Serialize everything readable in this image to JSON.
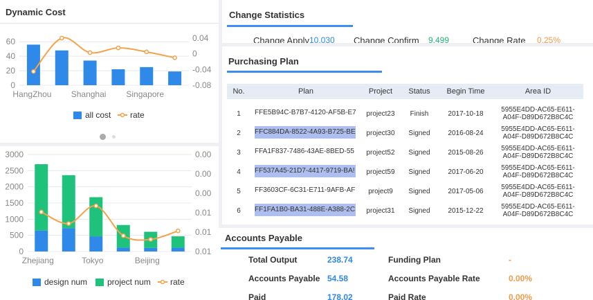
{
  "dynamic_cost": {
    "title": "Dynamic Cost",
    "legend": {
      "all_cost": "all cost",
      "rate": "rate"
    }
  },
  "change_stats": {
    "title": "Change Statistics",
    "apply_label": "Change Apply",
    "apply_value": "10,030",
    "confirm_label": "Change Confirm",
    "confirm_value": "9,499",
    "rate_label": "Change Rate",
    "rate_value": "0.25%"
  },
  "purchasing": {
    "title": "Purchasing Plan",
    "columns": [
      "No.",
      "Plan",
      "Project",
      "Status",
      "Begin Time",
      "Area ID"
    ],
    "rows": [
      {
        "no": "1",
        "plan": "FFE5B94C-B7B7-4120-AF5B-E7",
        "project": "project23",
        "status": "Finish",
        "begin": "2017-10-18",
        "area1": "5955E4DD-AC65-E611-",
        "area2": "A04F-D89D672B8C4C"
      },
      {
        "no": "2",
        "plan": "FFC884DA-8522-4A93-B725-BE",
        "project": "project30",
        "status": "Signed",
        "begin": "2016-08-24",
        "area1": "5955E4DD-AC65-E611-",
        "area2": "A04F-D89D672B8C4C"
      },
      {
        "no": "3",
        "plan": "FFA1F837-7486-43AE-8BED-55",
        "project": "project52",
        "status": "Signed",
        "begin": "2015-08-26",
        "area1": "5955E4DD-AC65-E611-",
        "area2": "A04F-D89D672B8C4C"
      },
      {
        "no": "4",
        "plan": "FF537A45-21D7-4417-9719-BA!",
        "project": "project59",
        "status": "Signed",
        "begin": "2017-06-20",
        "area1": "5955E4DD-AC65-E611-",
        "area2": "A04F-D89D672B8C4C"
      },
      {
        "no": "5",
        "plan": "FF3603CF-6C31-E711-9AFB-AF",
        "project": "project9",
        "status": "Signed",
        "begin": "2017-05-06",
        "area1": "5955E4DD-AC65-E611-",
        "area2": "A04F-D89D672B8C4C"
      },
      {
        "no": "6",
        "plan": "FF1FA1B0-BA31-488E-A388-2C",
        "project": "project31",
        "status": "Signed",
        "begin": "2015-12-22",
        "area1": "5955E4DD-AC65-E611-",
        "area2": "A04F-D89D672B8C4C"
      }
    ]
  },
  "accounts": {
    "title": "Accounts Payable",
    "total_output_label": "Total Output",
    "total_output_value": "238.74",
    "payable_label": "Accounts Payable",
    "payable_value": "54.58",
    "paid_label": "Paid",
    "paid_value": "178.02",
    "funding_label": "Funding Plan",
    "funding_value": "-",
    "payable_rate_label": "Accounts Payable Rate",
    "payable_rate_value": "0.00%",
    "paid_rate_label": "Paid Rate",
    "paid_rate_value": "0.00%"
  },
  "colors": {
    "accent": "#3d8ef0",
    "bar_blue": "#2f89e8",
    "bar_green": "#1fc27a",
    "line_orange": "#f4a34a"
  },
  "chart_data": [
    {
      "type": "bar",
      "categories": [
        "HangZhou",
        "",
        "Shanghai",
        "",
        "Singapore",
        ""
      ],
      "series": [
        {
          "name": "all cost",
          "type": "bar",
          "values": [
            56,
            48,
            34,
            22,
            25,
            19
          ]
        },
        {
          "name": "rate",
          "type": "line",
          "axis": "right",
          "values": [
            -0.045,
            0.04,
            0.003,
            0.015,
            0.005,
            -0.01
          ]
        }
      ],
      "ylim": [
        0,
        65
      ],
      "y_ticks": [
        "0",
        "20",
        "40",
        "60"
      ],
      "y2lim": [
        -0.08,
        0.04
      ],
      "y2_ticks": [
        "0.04",
        "0",
        "-0.04",
        "-0.08"
      ],
      "x_tick_labels": [
        "HangZhou",
        "Shanghai",
        "Singapore"
      ],
      "legend_position": "bottom",
      "grid": true
    },
    {
      "type": "bar",
      "categories": [
        "Zhejiang",
        "",
        "Tokyo",
        "",
        "Beijing",
        ""
      ],
      "series": [
        {
          "name": "design num",
          "type": "bar",
          "stack": "s",
          "values": [
            650,
            720,
            470,
            120,
            110,
            120
          ]
        },
        {
          "name": "project num",
          "type": "bar",
          "stack": "s",
          "values": [
            2050,
            1640,
            1210,
            700,
            500,
            350
          ]
        },
        {
          "name": "rate",
          "type": "line",
          "axis": "right",
          "values": [
            0.33,
            0.14,
            0.43,
            -0.06,
            -0.12,
            0.02
          ]
        }
      ],
      "ylim": [
        0,
        3000
      ],
      "y_ticks": [
        "0",
        "500",
        "1000",
        "1500",
        "2000",
        "2500",
        "3000"
      ],
      "y2_ticks": [
        "0.00",
        "0.00",
        "0.00",
        "0.01",
        "0.01",
        "0.01"
      ],
      "x_tick_labels": [
        "Zhejiang",
        "Tokyo",
        "Beijing"
      ],
      "legend_position": "bottom",
      "grid": true
    }
  ]
}
